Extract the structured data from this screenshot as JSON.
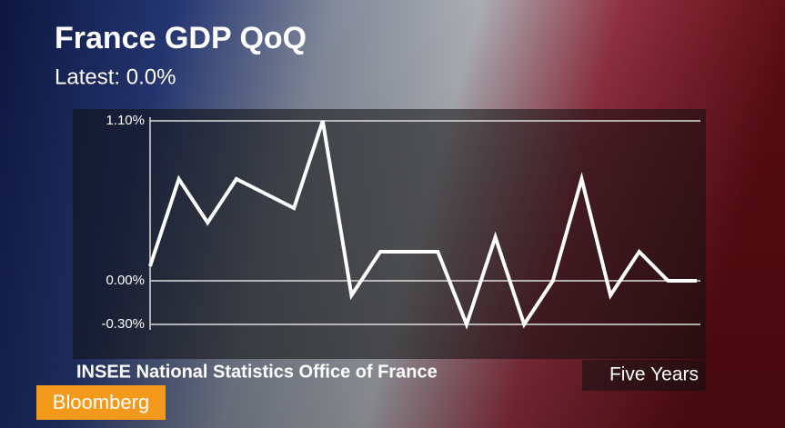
{
  "chart_data": {
    "type": "line",
    "title": "France GDP QoQ",
    "subtitle": "Latest: 0.0%",
    "source": "INSEE National Statistics Office of France",
    "period": "Five Years",
    "brand": "Bloomberg",
    "values": [
      0.1,
      0.7,
      0.4,
      0.7,
      0.6,
      0.5,
      1.1,
      -0.1,
      0.2,
      0.2,
      0.2,
      -0.3,
      0.3,
      -0.3,
      0.0,
      0.7,
      -0.1,
      0.2,
      0.0,
      0.0
    ],
    "color": "#ffffff",
    "ylim": [
      -0.3,
      1.1
    ],
    "yticks": [
      {
        "value": -0.3,
        "label": "-0.30%"
      },
      {
        "value": 0,
        "label": "0.00%"
      },
      {
        "value": 1.1,
        "label": "1.10%"
      }
    ],
    "grid": true
  }
}
